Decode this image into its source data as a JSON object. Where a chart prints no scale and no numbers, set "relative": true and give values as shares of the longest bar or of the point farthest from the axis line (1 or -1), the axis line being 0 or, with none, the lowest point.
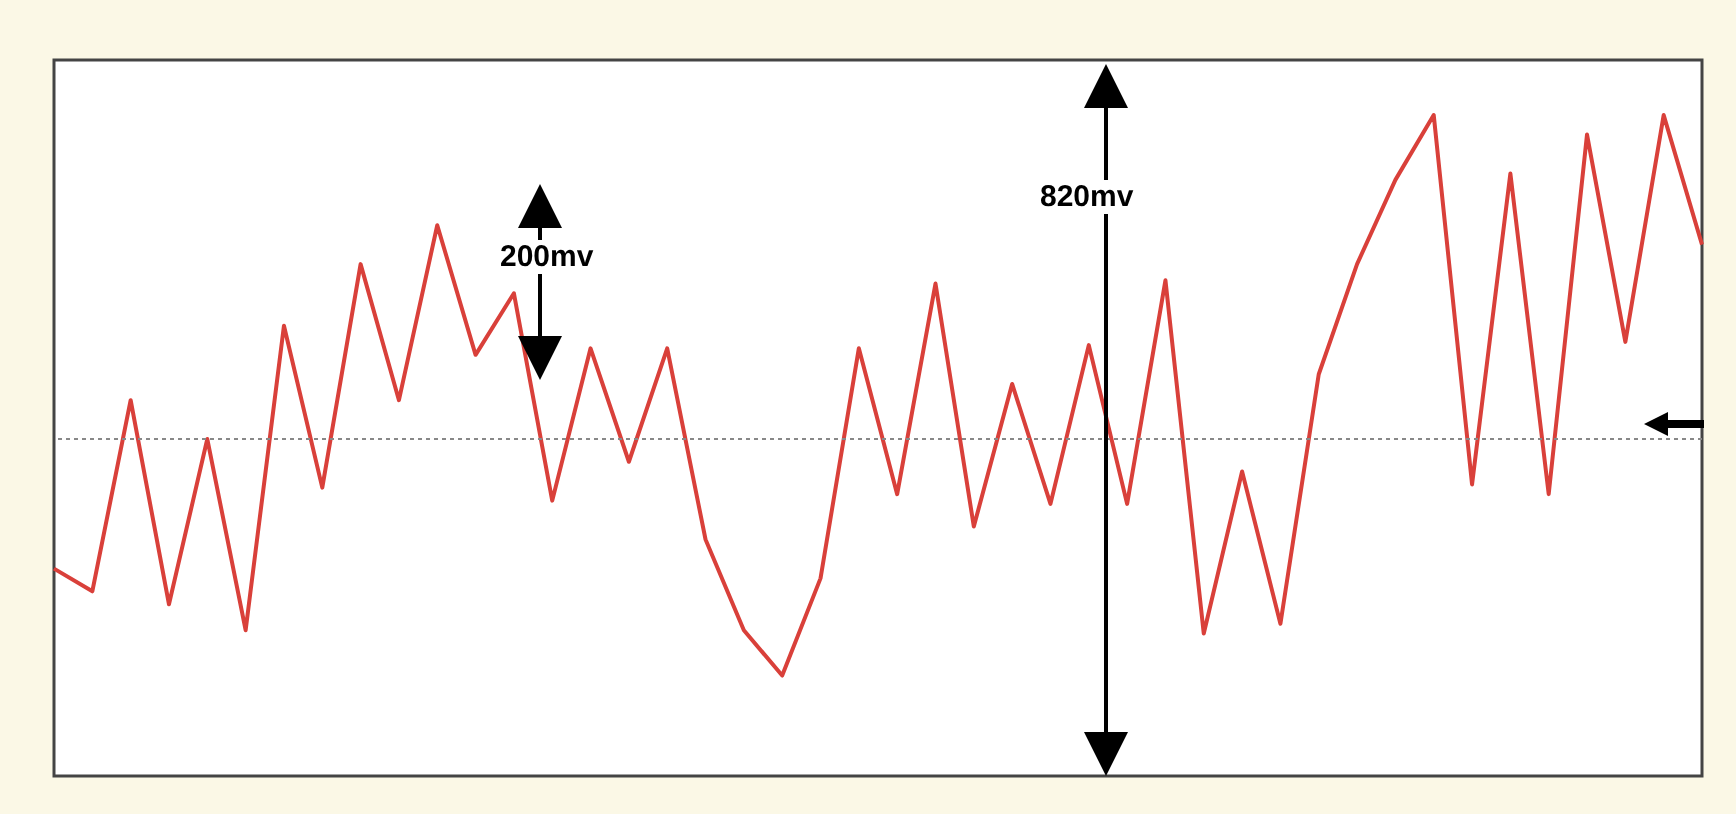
{
  "chart_data": {
    "type": "line",
    "relative": true,
    "color": "#d9403a",
    "marker": "none",
    "line_style": "solid",
    "categories": [
      null,
      null,
      null,
      null,
      null,
      null,
      null,
      null,
      null,
      null,
      null,
      null,
      null,
      null,
      null,
      null,
      null,
      null,
      null,
      null,
      null,
      null,
      null,
      null,
      null,
      null,
      null,
      null,
      null,
      null,
      null,
      null,
      null,
      null,
      null,
      null,
      null,
      null,
      null,
      null,
      null,
      null,
      null,
      null
    ],
    "values": [
      -0.4,
      -0.47,
      0.12,
      -0.51,
      0,
      -0.59,
      0.35,
      -0.15,
      0.54,
      0.12,
      0.66,
      0.26,
      0.45,
      -0.19,
      0.28,
      -0.07,
      0.28,
      -0.31,
      -0.59,
      -0.73,
      -0.43,
      0.28,
      -0.17,
      0.48,
      -0.27,
      0.17,
      -0.2,
      0.29,
      -0.2,
      0.49,
      -0.6,
      -0.1,
      -0.57,
      0.2,
      0.54,
      0.8,
      1,
      -0.14,
      0.82,
      -0.17,
      0.94,
      0.3,
      1,
      0.6
    ],
    "ref_lines": [
      {
        "axis": "y",
        "value": 0,
        "line_style": "dotted",
        "color": "#888888"
      }
    ],
    "annotations": [
      "200mv",
      "820mv"
    ]
  }
}
